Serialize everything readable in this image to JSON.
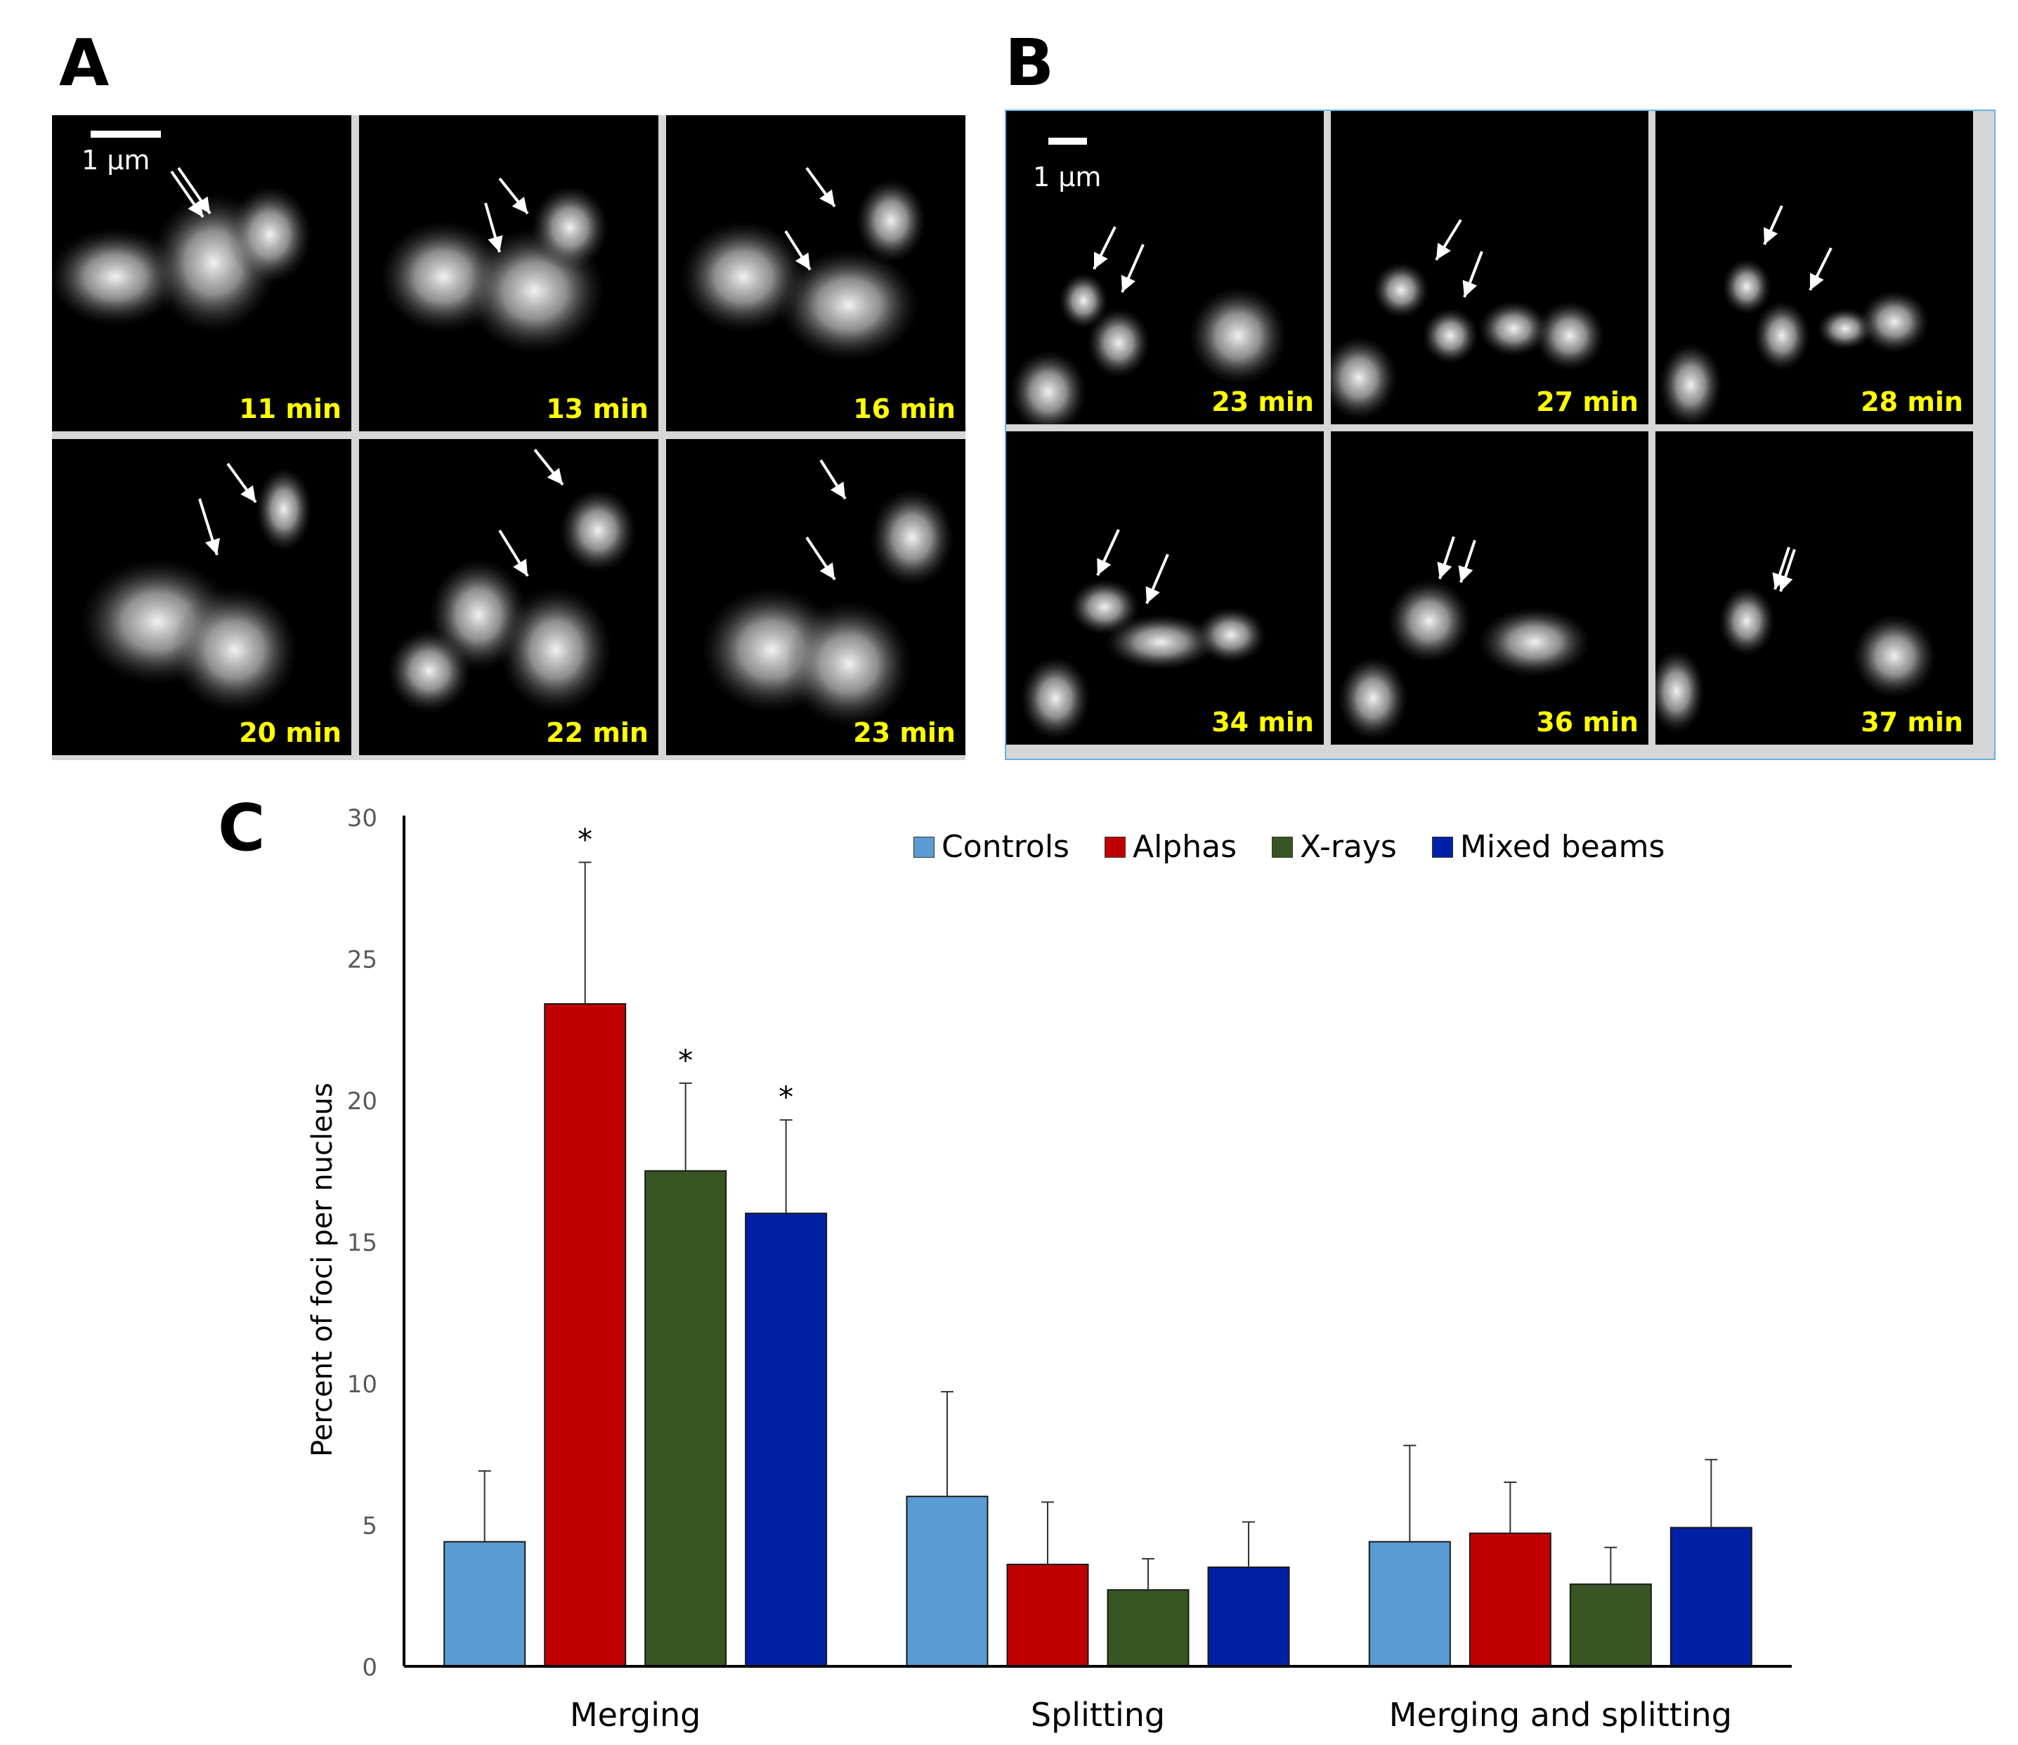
{
  "panels": {
    "a": {
      "letter": "A",
      "scale": "1 µm",
      "times": [
        "11 min",
        "13 min",
        "16 min",
        "20 min",
        "22 min",
        "23 min"
      ]
    },
    "b": {
      "letter": "B",
      "scale": "1 µm",
      "times": [
        "23 min",
        "27 min",
        "28 min",
        "34 min",
        "36 min",
        "37 min"
      ]
    },
    "c": {
      "letter": "C"
    }
  },
  "colors": {
    "controls": "#5b9bd5",
    "alphas": "#c00000",
    "xrays": "#375623",
    "mixed": "#0021a5",
    "time_label": "#ffff00"
  },
  "chart_data": {
    "type": "bar",
    "title": "",
    "xlabel": "",
    "ylabel": "Percent of foci  per nucleus",
    "ylim": [
      0,
      30
    ],
    "yticks": [
      0,
      5,
      10,
      15,
      20,
      25,
      30
    ],
    "categories": [
      "Merging",
      "Splitting",
      "Merging and splitting"
    ],
    "legend_position": "top",
    "series": [
      {
        "name": "Controls",
        "color": "#5b9bd5",
        "values": [
          4.4,
          6.0,
          4.4
        ],
        "errors": [
          2.5,
          3.7,
          3.4
        ],
        "sig": [
          "",
          "",
          ""
        ]
      },
      {
        "name": "Alphas",
        "color": "#c00000",
        "values": [
          23.4,
          3.6,
          4.7
        ],
        "errors": [
          5.0,
          2.2,
          1.8
        ],
        "sig": [
          "*",
          "",
          ""
        ]
      },
      {
        "name": "X-rays",
        "color": "#375623",
        "values": [
          17.5,
          2.7,
          2.9
        ],
        "errors": [
          3.1,
          1.1,
          1.3
        ],
        "sig": [
          "*",
          "",
          ""
        ]
      },
      {
        "name": "Mixed beams",
        "color": "#0021a5",
        "values": [
          16.0,
          3.5,
          4.9
        ],
        "errors": [
          3.3,
          1.6,
          2.4
        ],
        "sig": [
          "*",
          "",
          ""
        ]
      }
    ]
  }
}
